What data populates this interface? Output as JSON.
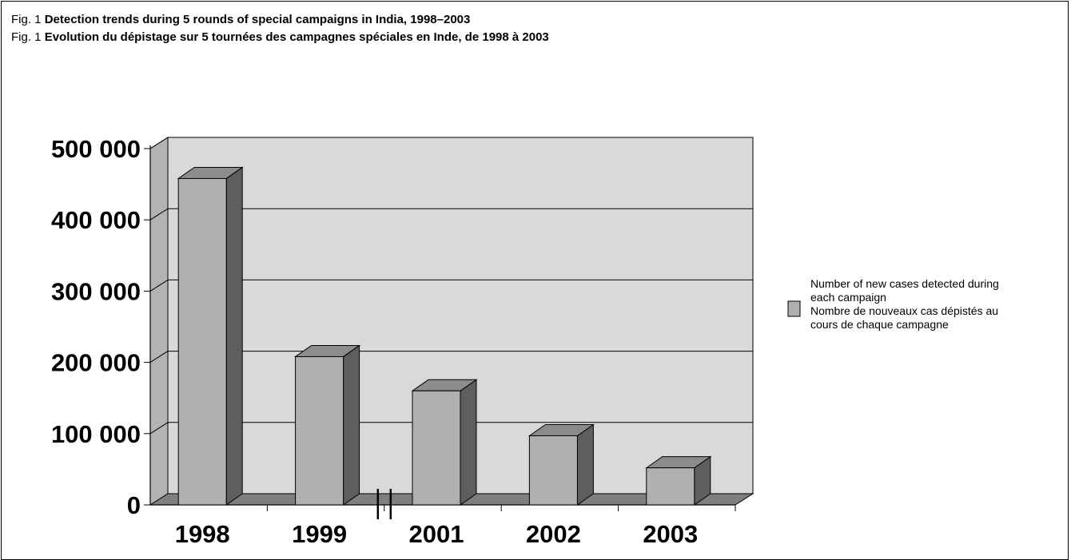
{
  "figure": {
    "title_en_label": "Fig. 1",
    "title_en_text": "Detection trends during 5 rounds of special campaigns in India, 1998–2003",
    "title_fr_label": "Fig. 1",
    "title_fr_text": "Evolution du dépistage sur 5 tournées des campagnes spéciales en Inde, de 1998 à 2003"
  },
  "legend": {
    "line1": "Number of new cases detected during",
    "line2": "each campaign",
    "line3": "Nombre de nouveaux cas dépistés au",
    "line4": "cours de chaque campagne"
  },
  "colors": {
    "bar_front": "#b0b0b0",
    "bar_top": "#8c8c8c",
    "bar_side": "#5e5e5e",
    "plot_bg": "#d9d9d9",
    "left_wall": "#b3b3b3",
    "floor": "#7f7f7f"
  },
  "chart_data": {
    "type": "bar",
    "categories": [
      "1998",
      "1999",
      "2001",
      "2002",
      "2003"
    ],
    "values": [
      458000,
      208000,
      160000,
      97000,
      52000
    ],
    "series": [
      {
        "name": "Number of new cases detected during each campaign / Nombre de nouveaux cas dépistés au cours de chaque campagne",
        "values": [
          458000,
          208000,
          160000,
          97000,
          52000
        ]
      }
    ],
    "ylim": [
      0,
      500000
    ],
    "yticks": [
      "0",
      "100 000",
      "200 000",
      "300 000",
      "400 000",
      "500 000"
    ],
    "grid": true,
    "legend_position": "right",
    "axis_break_between": [
      "1999",
      "2001"
    ]
  }
}
